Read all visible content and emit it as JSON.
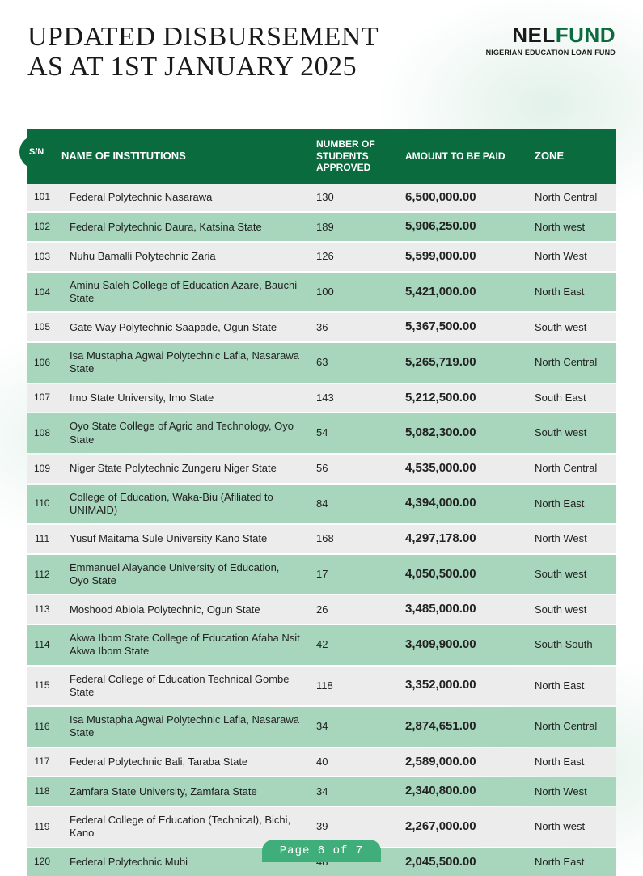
{
  "title_line1": "UPDATED DISBURSEMENT",
  "title_line2": "AS AT 1ST JANUARY 2025",
  "logo": {
    "part1": "NEL",
    "part2": "FUND",
    "sub": "NIGERIAN EDUCATION LOAN FUND"
  },
  "colors": {
    "brand_green": "#0a6b3f",
    "row_green": "#a8d6bd",
    "row_grey": "#ececec",
    "pill_green": "#3fae7a",
    "text": "#1a1a1a"
  },
  "columns": {
    "sn": "S/N",
    "name": "NAME OF INSTITUTIONS",
    "num": "NUMBER OF STUDENTS APPROVED",
    "amt": "AMOUNT TO BE PAID",
    "zone": "ZONE"
  },
  "rows": [
    {
      "sn": "101",
      "name": "Federal Polytechnic Nasarawa",
      "num": "130",
      "amt": "6,500,000.00",
      "zone": "North Central"
    },
    {
      "sn": "102",
      "name": "Federal Polytechnic Daura, Katsina State",
      "num": "189",
      "amt": "5,906,250.00",
      "zone": "North west"
    },
    {
      "sn": "103",
      "name": "Nuhu Bamalli Polytechnic Zaria",
      "num": "126",
      "amt": "5,599,000.00",
      "zone": "North West"
    },
    {
      "sn": "104",
      "name": "Aminu Saleh College of Education Azare, Bauchi State",
      "num": "100",
      "amt": "5,421,000.00",
      "zone": "North East"
    },
    {
      "sn": "105",
      "name": "Gate Way Polytechnic Saapade, Ogun State",
      "num": "36",
      "amt": "5,367,500.00",
      "zone": "South west"
    },
    {
      "sn": "106",
      "name": "Isa Mustapha Agwai Polytechnic Lafia, Nasarawa State",
      "num": "63",
      "amt": "5,265,719.00",
      "zone": "North Central"
    },
    {
      "sn": "107",
      "name": "Imo State University, Imo State",
      "num": "143",
      "amt": "5,212,500.00",
      "zone": "South East"
    },
    {
      "sn": "108",
      "name": "Oyo State College of Agric and Technology, Oyo State",
      "num": "54",
      "amt": "5,082,300.00",
      "zone": "South west"
    },
    {
      "sn": "109",
      "name": "Niger State Polytechnic Zungeru Niger State",
      "num": "56",
      "amt": "4,535,000.00",
      "zone": "North Central"
    },
    {
      "sn": "110",
      "name": "College of Education, Waka-Biu (Afiliated to UNIMAID)",
      "num": "84",
      "amt": "4,394,000.00",
      "zone": "North East"
    },
    {
      "sn": "111",
      "name": "Yusuf Maitama Sule University Kano State",
      "num": "168",
      "amt": "4,297,178.00",
      "zone": "North West"
    },
    {
      "sn": "112",
      "name": "Emmanuel Alayande University of Education, Oyo State",
      "num": "17",
      "amt": "4,050,500.00",
      "zone": "South west"
    },
    {
      "sn": "113",
      "name": "Moshood Abiola Polytechnic, Ogun State",
      "num": "26",
      "amt": "3,485,000.00",
      "zone": "South west"
    },
    {
      "sn": "114",
      "name": "Akwa Ibom State College of Education Afaha Nsit Akwa Ibom State",
      "num": "42",
      "amt": "3,409,900.00",
      "zone": "South South"
    },
    {
      "sn": "115",
      "name": "Federal College of Education Technical Gombe State",
      "num": "118",
      "amt": "3,352,000.00",
      "zone": "North East"
    },
    {
      "sn": "116",
      "name": "Isa Mustapha Agwai Polytechnic Lafia, Nasarawa State",
      "num": "34",
      "amt": "2,874,651.00",
      "zone": "North Central"
    },
    {
      "sn": "117",
      "name": "Federal Polytechnic Bali, Taraba State",
      "num": "40",
      "amt": "2,589,000.00",
      "zone": "North East"
    },
    {
      "sn": "118",
      "name": "Zamfara State University, Zamfara State",
      "num": "34",
      "amt": "2,340,800.00",
      "zone": "North West"
    },
    {
      "sn": "119",
      "name": "Federal College of Education (Technical), Bichi, Kano",
      "num": "39",
      "amt": "2,267,000.00",
      "zone": "North west"
    },
    {
      "sn": "120",
      "name": "Federal Polytechnic Mubi",
      "num": "48",
      "amt": "2,045,500.00",
      "zone": "North East"
    }
  ],
  "page_label": "Page 6 of 7"
}
